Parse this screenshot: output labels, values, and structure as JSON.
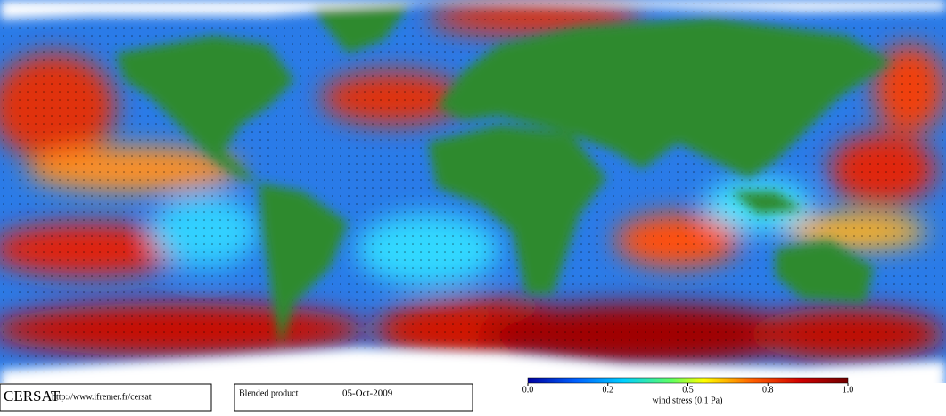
{
  "footer": {
    "logo": "CERSAT",
    "url": "http://www.ifremer.fr/cersat",
    "product": "Blended product",
    "date": "05-Oct-2009"
  },
  "colorbar": {
    "label": "wind stress (0.1 Pa)",
    "ticks": [
      {
        "value": 0,
        "label": "0.0"
      },
      0.2,
      0.5,
      0.8,
      {
        "value": 1,
        "label": "1.0"
      }
    ]
  }
}
